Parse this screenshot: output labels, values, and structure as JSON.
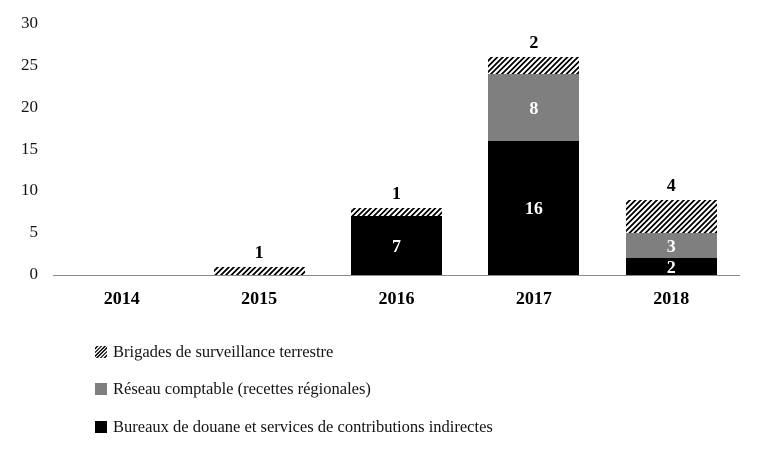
{
  "chart_data": {
    "type": "bar",
    "stacked": true,
    "title": "",
    "xlabel": "",
    "ylabel": "",
    "gridlines": false,
    "categories": [
      "2014",
      "2015",
      "2016",
      "2017",
      "2018"
    ],
    "series": [
      {
        "name": "Bureaux de douane et services de contributions indirectes",
        "style": "solid-black",
        "color": "#000000",
        "values": [
          0,
          0,
          7,
          16,
          2
        ],
        "label_position": "inside",
        "label_color": "#ffffff"
      },
      {
        "name": "Réseau comptable (recettes régionales)",
        "style": "solid-gray",
        "color": "#7f7f7f",
        "values": [
          0,
          0,
          0,
          8,
          3
        ],
        "label_position": "inside",
        "label_color": "#ffffff"
      },
      {
        "name": "Brigades de surveillance terrestre",
        "style": "hatched",
        "color": "#000000",
        "hatch_background": "#ffffff",
        "values": [
          0,
          1,
          1,
          2,
          4
        ],
        "label_position": "above-bar",
        "label_color": "#000000"
      }
    ],
    "totals": [
      0,
      1,
      8,
      26,
      9
    ],
    "y_axis": {
      "min": 0,
      "max": 30,
      "ticks": [
        0,
        5,
        10,
        15,
        20,
        25,
        30
      ]
    },
    "legend": {
      "position": "bottom-left",
      "entries": [
        {
          "swatch": "hatched",
          "label": "Brigades de surveillance terrestre"
        },
        {
          "swatch": "solid-gray",
          "label": "Réseau comptable (recettes régionales)"
        },
        {
          "swatch": "solid-black",
          "label": "Bureaux de douane et services de contributions indirectes"
        }
      ]
    }
  },
  "colors": {
    "background": "#ffffff",
    "axis_line": "#8a8a8a",
    "black_series": "#000000",
    "gray_series": "#7f7f7f",
    "hatch_foreground": "#000000",
    "hatch_background": "#ffffff"
  }
}
